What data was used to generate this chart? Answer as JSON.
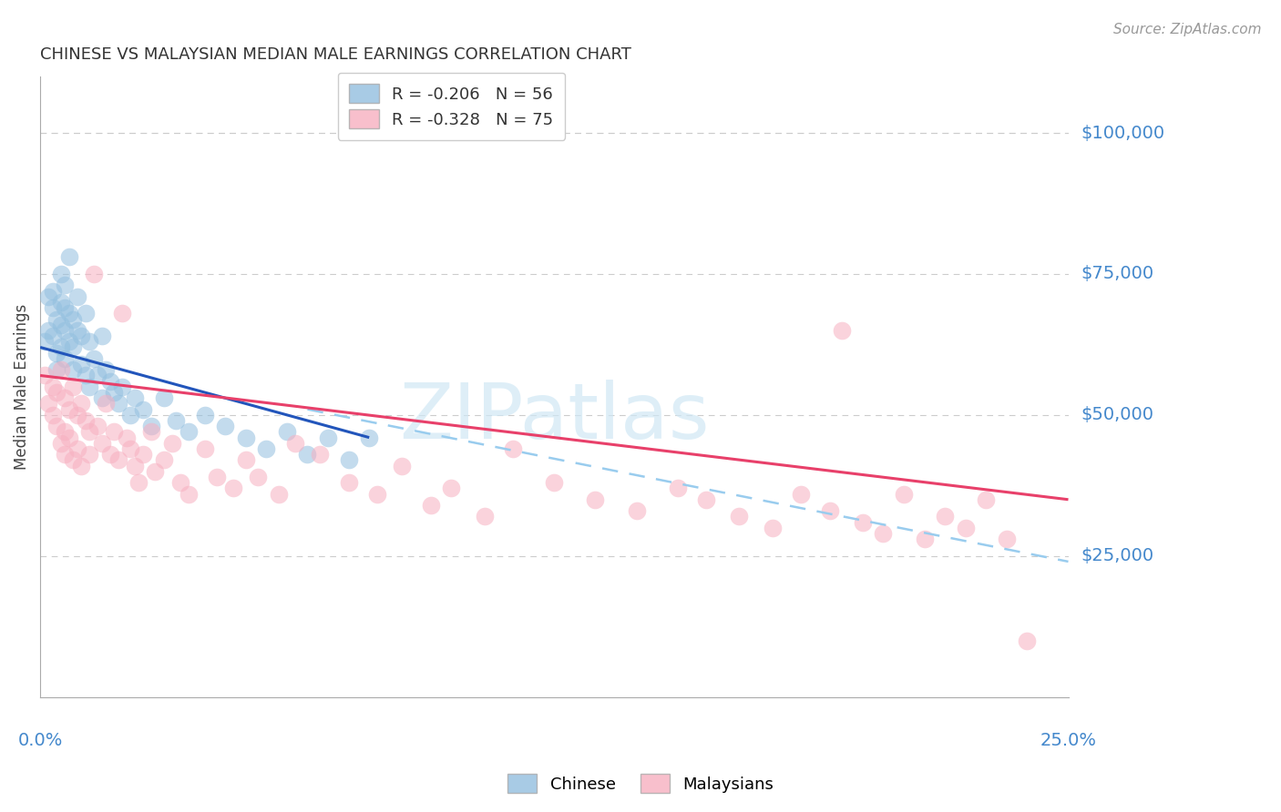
{
  "title": "CHINESE VS MALAYSIAN MEDIAN MALE EARNINGS CORRELATION CHART",
  "source": "Source: ZipAtlas.com",
  "ylabel": "Median Male Earnings",
  "ytick_labels": [
    "$100,000",
    "$75,000",
    "$50,000",
    "$25,000"
  ],
  "ytick_values": [
    100000,
    75000,
    50000,
    25000
  ],
  "ylim": [
    0,
    110000
  ],
  "xlim": [
    0.0,
    0.25
  ],
  "legend_chinese": "R = -0.206   N = 56",
  "legend_malaysian": "R = -0.328   N = 75",
  "chinese_color": "#92bfdf",
  "malaysian_color": "#f7afc0",
  "chinese_line_color": "#2255bb",
  "malaysian_line_color": "#e8406a",
  "dashed_line_color": "#99ccee",
  "background_color": "#ffffff",
  "grid_color": "#cccccc",
  "title_color": "#333333",
  "axis_label_color": "#4488cc",
  "source_color": "#999999",
  "watermark_color": "#d0e8f5",
  "chinese_line_x0": 0.0,
  "chinese_line_y0": 62000,
  "chinese_line_x1": 0.08,
  "chinese_line_y1": 46000,
  "malaysian_line_x0": 0.0,
  "malaysian_line_y0": 57000,
  "malaysian_line_x1": 0.25,
  "malaysian_line_y1": 35000,
  "dash_line_x0": 0.065,
  "dash_line_y0": 51000,
  "dash_line_x1": 0.25,
  "dash_line_y1": 24000,
  "chinese_scatter_x": [
    0.001,
    0.002,
    0.002,
    0.003,
    0.003,
    0.003,
    0.004,
    0.004,
    0.004,
    0.005,
    0.005,
    0.005,
    0.005,
    0.006,
    0.006,
    0.006,
    0.006,
    0.007,
    0.007,
    0.007,
    0.008,
    0.008,
    0.008,
    0.009,
    0.009,
    0.01,
    0.01,
    0.011,
    0.011,
    0.012,
    0.012,
    0.013,
    0.014,
    0.015,
    0.015,
    0.016,
    0.017,
    0.018,
    0.019,
    0.02,
    0.022,
    0.023,
    0.025,
    0.027,
    0.03,
    0.033,
    0.036,
    0.04,
    0.045,
    0.05,
    0.055,
    0.06,
    0.065,
    0.07,
    0.075,
    0.08
  ],
  "chinese_scatter_y": [
    63000,
    71000,
    65000,
    72000,
    69000,
    64000,
    67000,
    61000,
    58000,
    75000,
    70000,
    66000,
    62000,
    73000,
    69000,
    65000,
    60000,
    78000,
    68000,
    63000,
    67000,
    62000,
    58000,
    71000,
    65000,
    64000,
    59000,
    68000,
    57000,
    63000,
    55000,
    60000,
    57000,
    64000,
    53000,
    58000,
    56000,
    54000,
    52000,
    55000,
    50000,
    53000,
    51000,
    48000,
    53000,
    49000,
    47000,
    50000,
    48000,
    46000,
    44000,
    47000,
    43000,
    46000,
    42000,
    46000
  ],
  "malaysian_scatter_x": [
    0.001,
    0.002,
    0.003,
    0.003,
    0.004,
    0.004,
    0.005,
    0.005,
    0.006,
    0.006,
    0.006,
    0.007,
    0.007,
    0.008,
    0.008,
    0.009,
    0.009,
    0.01,
    0.01,
    0.011,
    0.012,
    0.012,
    0.013,
    0.014,
    0.015,
    0.016,
    0.017,
    0.018,
    0.019,
    0.02,
    0.021,
    0.022,
    0.023,
    0.024,
    0.025,
    0.027,
    0.028,
    0.03,
    0.032,
    0.034,
    0.036,
    0.04,
    0.043,
    0.047,
    0.05,
    0.053,
    0.058,
    0.062,
    0.068,
    0.075,
    0.082,
    0.088,
    0.095,
    0.1,
    0.108,
    0.115,
    0.125,
    0.135,
    0.145,
    0.155,
    0.162,
    0.17,
    0.178,
    0.185,
    0.192,
    0.195,
    0.2,
    0.205,
    0.21,
    0.215,
    0.22,
    0.225,
    0.23,
    0.235,
    0.24
  ],
  "malaysian_scatter_y": [
    57000,
    52000,
    50000,
    55000,
    48000,
    54000,
    58000,
    45000,
    53000,
    47000,
    43000,
    51000,
    46000,
    55000,
    42000,
    50000,
    44000,
    52000,
    41000,
    49000,
    47000,
    43000,
    75000,
    48000,
    45000,
    52000,
    43000,
    47000,
    42000,
    68000,
    46000,
    44000,
    41000,
    38000,
    43000,
    47000,
    40000,
    42000,
    45000,
    38000,
    36000,
    44000,
    39000,
    37000,
    42000,
    39000,
    36000,
    45000,
    43000,
    38000,
    36000,
    41000,
    34000,
    37000,
    32000,
    44000,
    38000,
    35000,
    33000,
    37000,
    35000,
    32000,
    30000,
    36000,
    33000,
    65000,
    31000,
    29000,
    36000,
    28000,
    32000,
    30000,
    35000,
    28000,
    10000
  ]
}
